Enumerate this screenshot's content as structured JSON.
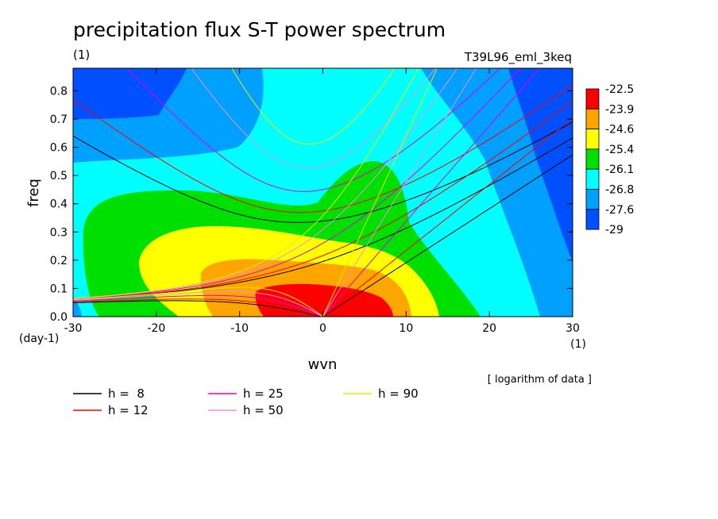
{
  "chart_data": {
    "type": "heatmap",
    "title": "precipitation flux S-T power spectrum",
    "subtitle_left": "(1)",
    "subtitle_right": "T39L96_eml_3keq",
    "xlabel": "wvn",
    "ylabel": "freq",
    "x_unit": "(1)",
    "y_unit": "(day-1)",
    "note": "[ logarithm of data ]",
    "xlim": [
      -30,
      30
    ],
    "ylim": [
      0,
      0.88
    ],
    "x_ticks": [
      "-30",
      "-20",
      "-10",
      "0",
      "10",
      "20",
      "30"
    ],
    "y_ticks": [
      "0.0",
      "0.1",
      "0.2",
      "0.3",
      "0.4",
      "0.5",
      "0.6",
      "0.7",
      "0.8"
    ],
    "colorbar": {
      "levels": [
        "-22.5",
        "-23.9",
        "-24.6",
        "-25.4",
        "-26.1",
        "-26.8",
        "-27.6",
        "-29"
      ],
      "colors": [
        "#ff0000",
        "#ffa500",
        "#ffff00",
        "#00e000",
        "#00ffff",
        "#00a0ff",
        "#0050ff"
      ]
    },
    "dispersion_curves": [
      {
        "label": "h =  8",
        "h": 8,
        "color": "#000000"
      },
      {
        "label": "h = 12",
        "h": 12,
        "color": "#ff0000"
      },
      {
        "label": "h = 25",
        "h": 25,
        "color": "#e000e0"
      },
      {
        "label": "h = 50",
        "h": 50,
        "color": "#e890e8"
      },
      {
        "label": "h = 90",
        "h": 90,
        "color": "#e8e800"
      }
    ],
    "field": {
      "description_units": "log power",
      "peak": {
        "wvn": 0,
        "freq": 0.05,
        "value": -22.5
      }
    }
  }
}
